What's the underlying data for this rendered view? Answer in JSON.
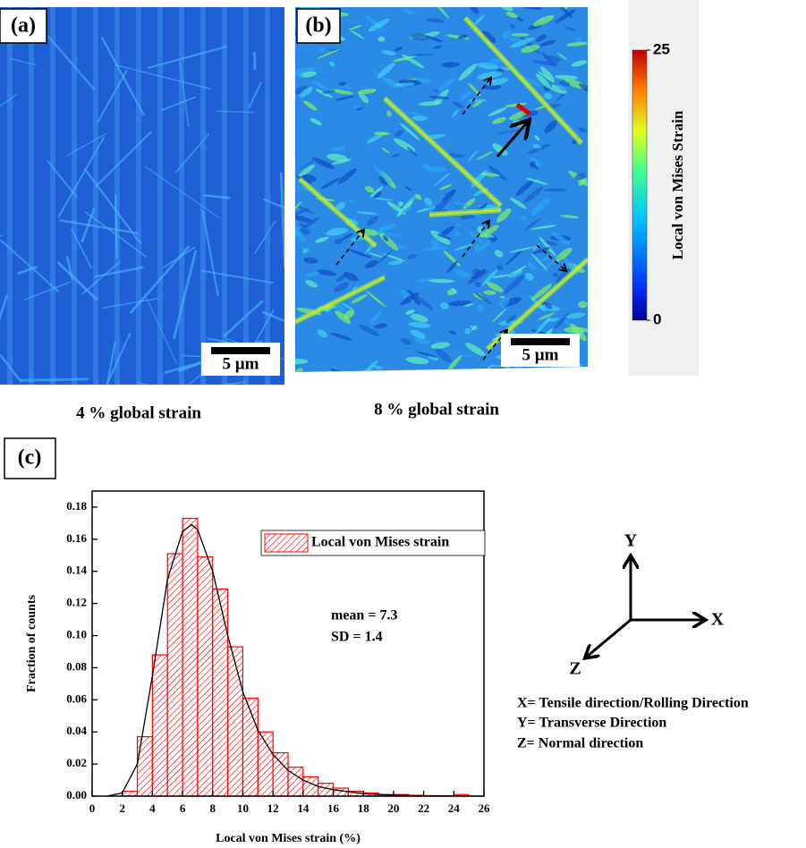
{
  "panels": [
    {
      "label": "(a)",
      "scale_bar": "5 µm",
      "caption": "4 % global strain"
    },
    {
      "label": "(b)",
      "scale_bar": "5 µm",
      "caption": "8 % global strain"
    }
  ],
  "colorbar": {
    "label": "Local von Mises Strain",
    "lim": [
      0,
      25
    ],
    "ticks": [
      0,
      25
    ]
  },
  "histogram_panel_label": "(c)",
  "chart_data": {
    "type": "histogram",
    "bins": [
      2,
      3,
      4,
      5,
      6,
      7,
      8,
      9,
      10,
      11,
      12,
      13,
      14,
      15,
      16,
      17,
      18,
      19,
      20,
      21,
      22,
      23,
      24,
      25
    ],
    "series": [
      {
        "name": "Local von Mises strain",
        "color": "#ff0000",
        "values": [
          0.003,
          0.037,
          0.088,
          0.151,
          0.173,
          0.149,
          0.129,
          0.093,
          0.061,
          0.04,
          0.027,
          0.018,
          0.012,
          0.008,
          0.005,
          0.003,
          0.002,
          0.001,
          0.001,
          0.0005,
          0.0003,
          0.0002,
          0.001
        ]
      }
    ],
    "fit": {
      "color": "#000000",
      "x": [
        1,
        2,
        3,
        4,
        5,
        6,
        6.6,
        7,
        8,
        9,
        10,
        11,
        12,
        13,
        14,
        15,
        16,
        18,
        20,
        22,
        24,
        26
      ],
      "values": [
        0,
        0.002,
        0.02,
        0.075,
        0.135,
        0.165,
        0.169,
        0.166,
        0.14,
        0.1,
        0.065,
        0.041,
        0.026,
        0.016,
        0.01,
        0.006,
        0.004,
        0.0015,
        0.0006,
        0.0002,
        0.0001,
        0
      ]
    },
    "xlim": [
      0,
      26
    ],
    "xticks": [
      0,
      2,
      4,
      6,
      8,
      10,
      12,
      14,
      16,
      18,
      20,
      22,
      24,
      26
    ],
    "ylim": [
      0,
      0.19
    ],
    "yticks": [
      {
        "value": 0,
        "label": "0.00"
      },
      {
        "value": 0.02,
        "label": "0.02"
      },
      {
        "value": 0.04,
        "label": "0.04"
      },
      {
        "value": 0.06,
        "label": "0.06"
      },
      {
        "value": 0.08,
        "label": "0.08"
      },
      {
        "value": 0.1,
        "label": "0.10"
      },
      {
        "value": 0.12,
        "label": "0.12"
      },
      {
        "value": 0.14,
        "label": "0.14"
      },
      {
        "value": 0.16,
        "label": "0.16"
      },
      {
        "value": 0.18,
        "label": "0.18"
      }
    ],
    "xlabel": "Local von Mises strain (%)",
    "ylabel": "Fraction of counts",
    "annotations": [
      "mean = 7.3",
      "SD = 1.4"
    ]
  },
  "axes_diagram": {
    "x": "X",
    "y": "Y",
    "z": "Z",
    "notes": [
      "X= Tensile direction/Rolling Direction",
      "Y= Transverse Direction",
      "Z= Normal direction"
    ]
  }
}
